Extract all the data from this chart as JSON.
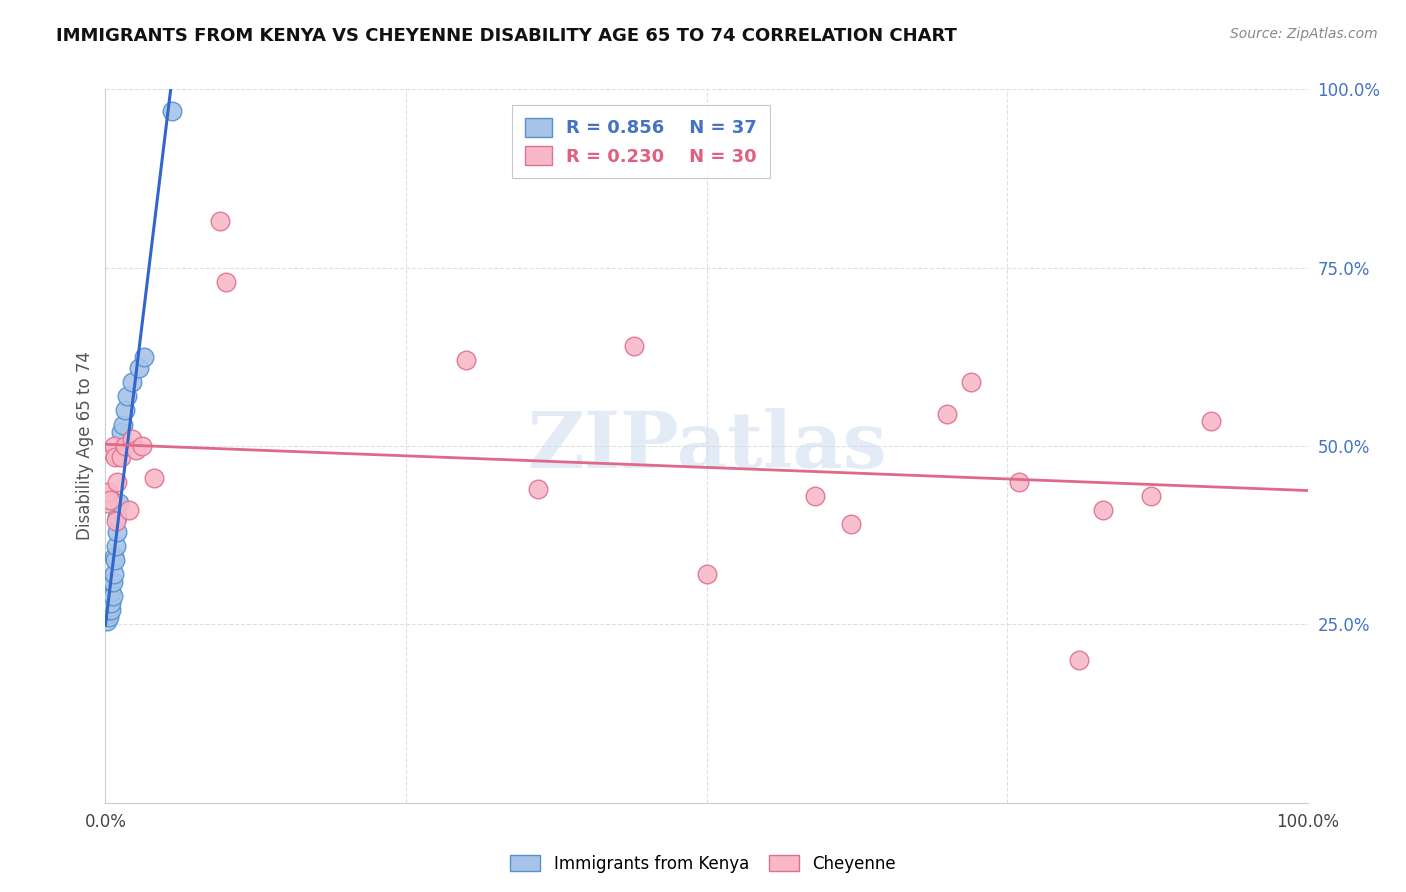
{
  "title": "IMMIGRANTS FROM KENYA VS CHEYENNE DISABILITY AGE 65 TO 74 CORRELATION CHART",
  "source": "Source: ZipAtlas.com",
  "ylabel": "Disability Age 65 to 74",
  "xlim": [
    0,
    1.0
  ],
  "ylim": [
    0,
    1.0
  ],
  "yticks_right_labels": [
    "25.0%",
    "50.0%",
    "75.0%",
    "100.0%"
  ],
  "yticks_right_values": [
    0.25,
    0.5,
    0.75,
    1.0
  ],
  "legend1_r": "0.856",
  "legend1_n": "37",
  "legend2_r": "0.230",
  "legend2_n": "30",
  "legend_label1": "Immigrants from Kenya",
  "legend_label2": "Cheyenne",
  "blue_fill": "#a8c4e8",
  "blue_edge": "#5590d0",
  "pink_fill": "#f8b8c8",
  "pink_edge": "#e07090",
  "blue_line": "#3366cc",
  "pink_line": "#e06888",
  "background": "#ffffff",
  "grid_color": "#e0e0e0",
  "kenya_x": [
    0.001,
    0.001,
    0.001,
    0.001,
    0.002,
    0.002,
    0.002,
    0.002,
    0.003,
    0.003,
    0.003,
    0.003,
    0.003,
    0.004,
    0.004,
    0.005,
    0.005,
    0.005,
    0.005,
    0.006,
    0.006,
    0.007,
    0.007,
    0.008,
    0.009,
    0.01,
    0.01,
    0.011,
    0.012,
    0.013,
    0.015,
    0.016,
    0.018,
    0.022,
    0.028,
    0.032,
    0.055
  ],
  "kenya_y": [
    0.255,
    0.265,
    0.275,
    0.285,
    0.265,
    0.275,
    0.285,
    0.295,
    0.26,
    0.27,
    0.275,
    0.28,
    0.29,
    0.275,
    0.29,
    0.27,
    0.28,
    0.295,
    0.31,
    0.29,
    0.31,
    0.32,
    0.345,
    0.34,
    0.36,
    0.38,
    0.4,
    0.42,
    0.495,
    0.52,
    0.53,
    0.55,
    0.57,
    0.59,
    0.61,
    0.625,
    0.97
  ],
  "cheyenne_x": [
    0.001,
    0.002,
    0.004,
    0.006,
    0.007,
    0.008,
    0.009,
    0.01,
    0.013,
    0.016,
    0.02,
    0.022,
    0.025,
    0.03,
    0.04,
    0.095,
    0.1,
    0.3,
    0.36,
    0.44,
    0.5,
    0.59,
    0.62,
    0.7,
    0.72,
    0.76,
    0.81,
    0.83,
    0.87,
    0.92
  ],
  "cheyenne_y": [
    0.42,
    0.435,
    0.425,
    0.49,
    0.5,
    0.485,
    0.395,
    0.45,
    0.485,
    0.5,
    0.41,
    0.51,
    0.495,
    0.5,
    0.455,
    0.815,
    0.73,
    0.62,
    0.44,
    0.64,
    0.32,
    0.43,
    0.39,
    0.545,
    0.59,
    0.45,
    0.2,
    0.41,
    0.43,
    0.535
  ]
}
